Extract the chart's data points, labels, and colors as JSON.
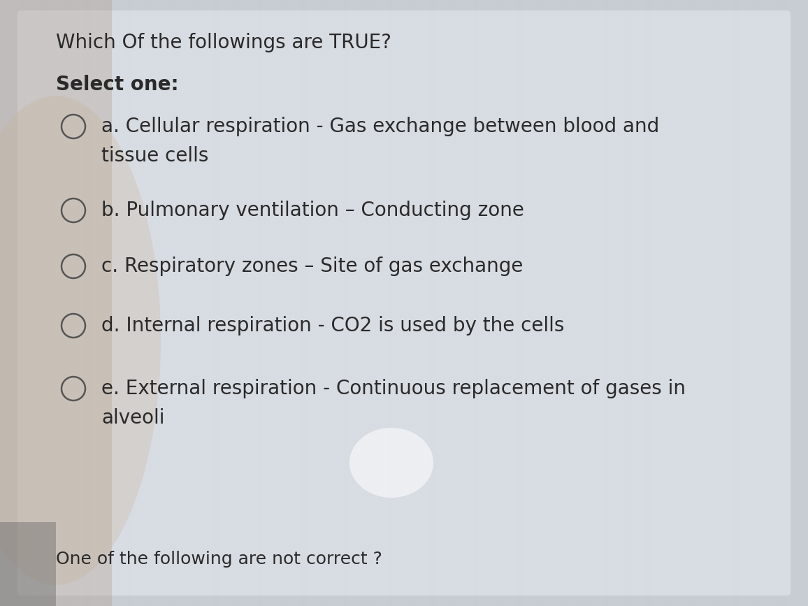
{
  "title": "Which Of the followings are TRUE?",
  "select_one": "Select one:",
  "options": [
    {
      "label": "a",
      "line1": "a. Cellular respiration - Gas exchange between blood and",
      "line2": "tissue cells",
      "two_lines": true
    },
    {
      "label": "b",
      "line1": "b. Pulmonary ventilation – Conducting zone",
      "line2": "",
      "two_lines": false
    },
    {
      "label": "c",
      "line1": "c. Respiratory zones – Site of gas exchange",
      "line2": "",
      "two_lines": false
    },
    {
      "label": "d",
      "line1": "d. Internal respiration - CO2 is used by the cells",
      "line2": "",
      "two_lines": false
    },
    {
      "label": "e",
      "line1": "e. External respiration - Continuous replacement of gases in",
      "line2": "alveoli",
      "two_lines": true
    }
  ],
  "footer": "One of the following are not correct ?",
  "bg_color": "#c8ccd3",
  "card_color": "#d8dce3",
  "text_color": "#2a2a2a",
  "circle_edge_color": "#555555",
  "title_fontsize": 20,
  "select_fontsize": 20,
  "option_fontsize": 20,
  "footer_fontsize": 18,
  "fig_width": 11.56,
  "fig_height": 8.67,
  "dpi": 100
}
